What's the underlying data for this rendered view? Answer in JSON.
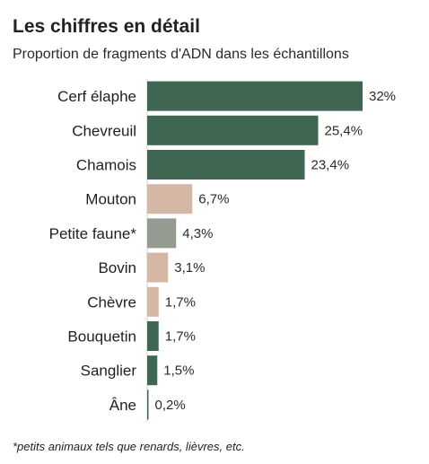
{
  "chart_data": {
    "type": "bar",
    "orientation": "horizontal",
    "title": "Les chiffres en détail",
    "subtitle": "Proportion de fragments d'ADN dans les échantillons",
    "categories": [
      "Cerf élaphe",
      "Chevreuil",
      "Chamois",
      "Mouton",
      "Petite faune*",
      "Bovin",
      "Chèvre",
      "Bouquetin",
      "Sanglier",
      "Âne"
    ],
    "values": [
      32,
      25.4,
      23.4,
      6.7,
      4.3,
      3.1,
      1.7,
      1.7,
      1.5,
      0.2
    ],
    "value_labels": [
      "32%",
      "25,4%",
      "23,4%",
      "6,7%",
      "4,3%",
      "3,1%",
      "1,7%",
      "1,7%",
      "1,5%",
      "0,2%"
    ],
    "colors": [
      "#3e6650",
      "#3e6650",
      "#3e6650",
      "#d4b8a5",
      "#949b91",
      "#d4b8a5",
      "#d4b8a5",
      "#3e6650",
      "#3e6650",
      "#3e6650"
    ],
    "xlim": [
      0,
      32
    ],
    "footnote": "*petits animaux tels que renards, lièvres, etc."
  }
}
